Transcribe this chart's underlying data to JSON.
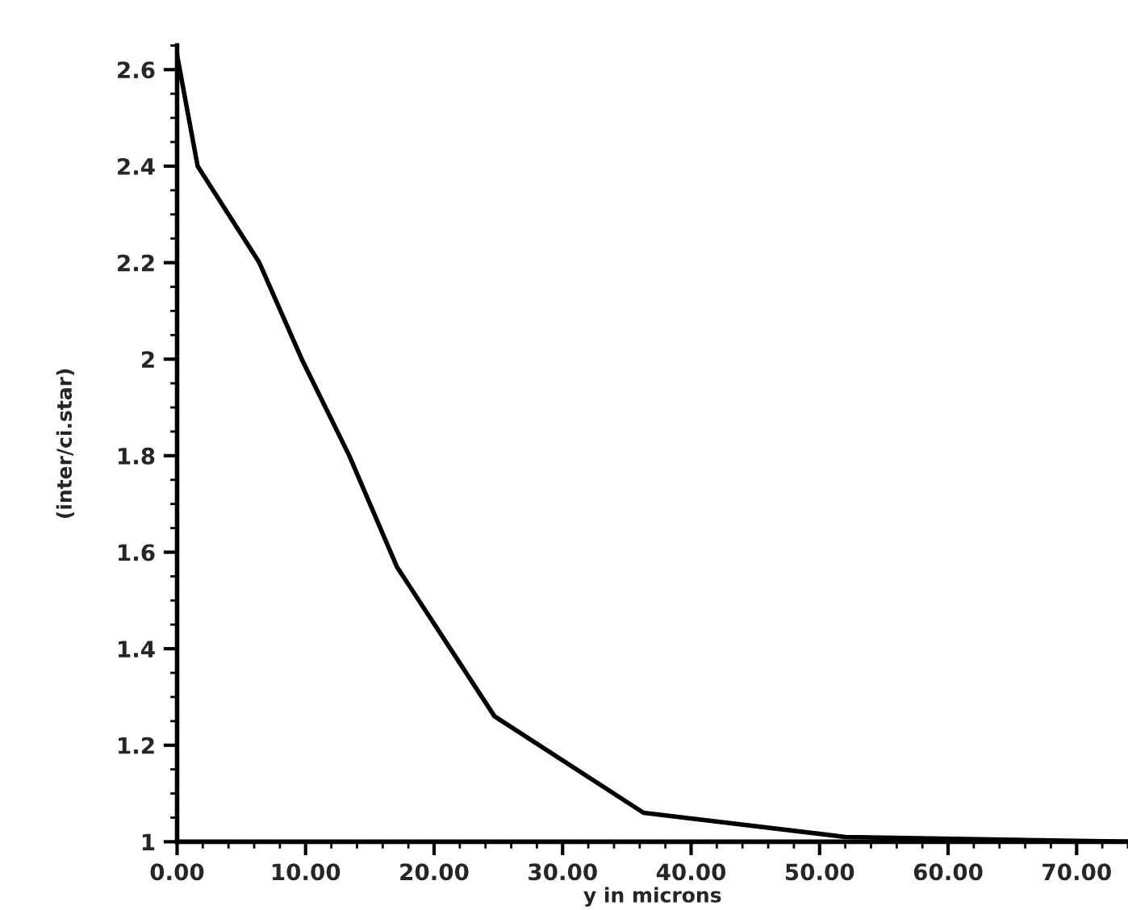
{
  "chart_data": {
    "type": "line",
    "xlabel": "y in microns",
    "ylabel": "(inter/ci.star)",
    "x": [
      0,
      1.6,
      6.4,
      9.7,
      13.4,
      17.1,
      24.7,
      36.3,
      52,
      74
    ],
    "values": [
      2.63,
      2.4,
      2.2,
      2.0,
      1.8,
      1.57,
      1.26,
      1.06,
      1.01,
      1.0
    ],
    "color": "#000000",
    "xlim": [
      0,
      74
    ],
    "ylim": [
      1,
      2.65
    ],
    "xticks": [
      {
        "value": 0,
        "label": "0.00"
      },
      {
        "value": 10,
        "label": "10.00"
      },
      {
        "value": 20,
        "label": "20.00"
      },
      {
        "value": 30,
        "label": "30.00"
      },
      {
        "value": 40,
        "label": "40.00"
      },
      {
        "value": 50,
        "label": "50.00"
      },
      {
        "value": 60,
        "label": "60.00"
      },
      {
        "value": 70,
        "label": "70.00"
      }
    ],
    "yticks": [
      1,
      1.2,
      1.4,
      1.6,
      1.8,
      2,
      2.2,
      2.4,
      2.6
    ],
    "grid": false,
    "legend": false,
    "marker": "none",
    "line_style": "solid"
  }
}
